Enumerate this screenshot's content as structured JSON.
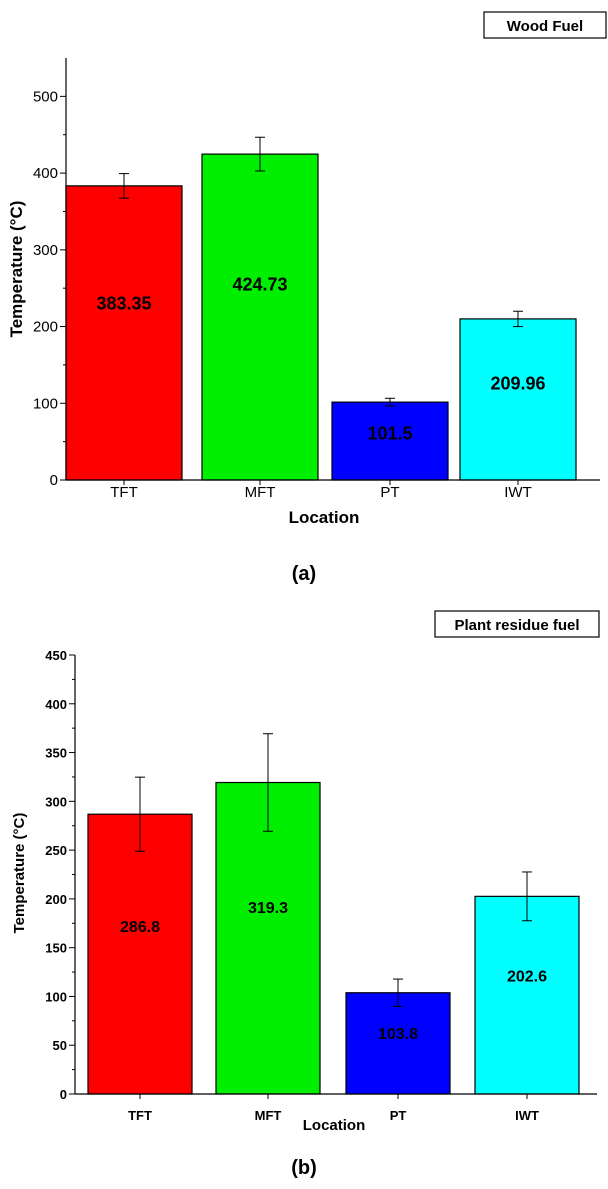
{
  "chart_data": [
    {
      "type": "bar",
      "panel_label": "(a)",
      "legend": "Wood Fuel",
      "legend_placement": "top-right",
      "xlabel": "Location",
      "ylabel": "Temperature (°C)",
      "ylim": [
        0,
        550
      ],
      "yticks": [
        0,
        100,
        200,
        300,
        400,
        500
      ],
      "categories": [
        "TFT",
        "MFT",
        "PT",
        "IWT"
      ],
      "values": [
        383.35,
        424.73,
        101.5,
        209.96
      ],
      "value_labels": [
        "383.35",
        "424.73",
        "101.5",
        "209.96"
      ],
      "errors": [
        16,
        22,
        5,
        10
      ],
      "colors": [
        "#ff0000",
        "#00ee00",
        "#0000ff",
        "#00ffff"
      ],
      "grid": false
    },
    {
      "type": "bar",
      "panel_label": "(b)",
      "legend": "Plant residue fuel",
      "legend_placement": "top-right",
      "xlabel": "Location",
      "ylabel": "Temperature (°C)",
      "ylim": [
        0,
        450
      ],
      "yticks": [
        0,
        50,
        100,
        150,
        200,
        250,
        300,
        350,
        400,
        450
      ],
      "categories": [
        "TFT",
        "MFT",
        "PT",
        "IWT"
      ],
      "values": [
        286.8,
        319.3,
        103.8,
        202.6
      ],
      "value_labels": [
        "286.8",
        "319.3",
        "103.8",
        "202.6"
      ],
      "errors": [
        38,
        50,
        14,
        25
      ],
      "colors": [
        "#ff0000",
        "#00ee00",
        "#0000ff",
        "#00ffff"
      ],
      "grid": false
    }
  ]
}
